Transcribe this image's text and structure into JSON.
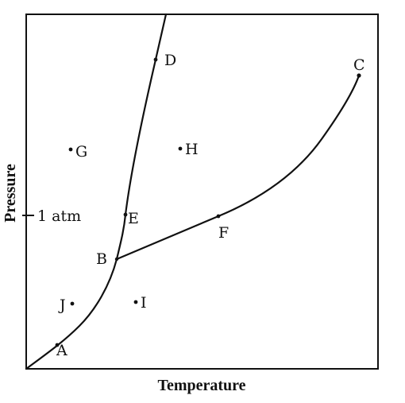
{
  "axes": {
    "x_label": "Temperature",
    "y_label": "Pressure",
    "reference_tick": "1 atm"
  },
  "points": {
    "A": "A",
    "B": "B",
    "C": "C",
    "D": "D",
    "E": "E",
    "F": "F",
    "G": "G",
    "H": "H",
    "I": "I",
    "J": "J"
  }
}
